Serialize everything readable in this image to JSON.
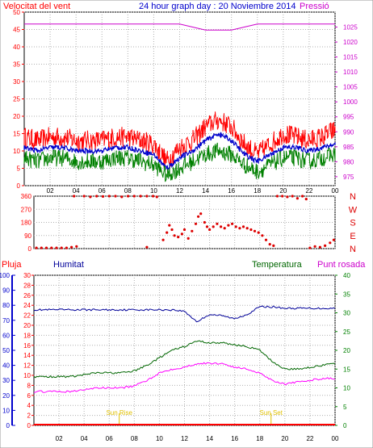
{
  "header": {
    "left_label": "Velocitat del vent",
    "title": "24 hour graph day : 20 Noviembre 2014",
    "right_label": "Pressió"
  },
  "colors": {
    "wind": "#ff0000",
    "gust_avg": "#0000cc",
    "wind_avg": "#008000",
    "pressure": "#cc00cc",
    "direction": "#dd0000",
    "rain": "#ff0000",
    "humidity": "#000099",
    "temperature": "#006600",
    "dew_point": "#ff00ff",
    "sun": "#e0c000"
  },
  "x_axis": {
    "ticks": [
      "02",
      "04",
      "06",
      "08",
      "10",
      "12",
      "14",
      "16",
      "18",
      "20",
      "22",
      "00"
    ]
  },
  "chart_data": [
    {
      "type": "line",
      "id": "wind_pressure",
      "ylim": [
        0,
        50
      ],
      "yticks": [
        "0",
        "5",
        "10",
        "15",
        "20",
        "25",
        "30",
        "35",
        "40",
        "45",
        "50"
      ],
      "y2lim": [
        972,
        1030
      ],
      "y2ticks": [
        "975",
        "980",
        "985",
        "990",
        "995",
        "1000",
        "1005",
        "1010",
        "1015",
        "1020",
        "1025"
      ],
      "x_hours": [
        0,
        1,
        2,
        3,
        4,
        5,
        6,
        7,
        8,
        9,
        10,
        11,
        12,
        13,
        14,
        15,
        16,
        17,
        18,
        19,
        20,
        21,
        22,
        23,
        24
      ],
      "series": [
        {
          "name": "Velocitat del vent",
          "values": [
            14,
            13,
            14,
            14,
            13,
            13,
            13,
            14,
            14,
            13,
            12,
            7,
            11,
            13,
            17,
            19,
            17,
            12,
            9,
            12,
            15,
            14,
            13,
            14,
            16
          ]
        },
        {
          "values": [
            11,
            10,
            11,
            11,
            10,
            10,
            10,
            11,
            11,
            10,
            9,
            5,
            8,
            10,
            13,
            15,
            13,
            9,
            7,
            9,
            11,
            11,
            10,
            11,
            12
          ]
        },
        {
          "values": [
            8,
            7,
            8,
            8,
            7,
            7,
            7,
            8,
            8,
            7,
            6,
            3,
            5,
            7,
            9,
            10,
            9,
            6,
            4,
            6,
            8,
            8,
            7,
            8,
            9
          ]
        },
        {
          "name": "Pressió",
          "axis": "right",
          "values": [
            1026,
            1026,
            1026,
            1026,
            1026,
            1026,
            1026,
            1026,
            1026,
            1026,
            1026,
            1026,
            1026,
            1025,
            1024,
            1024,
            1024,
            1025,
            1026,
            1026,
            1026,
            1026,
            1026,
            1026,
            1026
          ]
        }
      ]
    },
    {
      "type": "scatter",
      "id": "wind_direction",
      "yticks": [
        "0",
        "90",
        "180",
        "270",
        "360"
      ],
      "ylim": [
        0,
        360
      ],
      "compass_labels": [
        "N",
        "W",
        "S",
        "E",
        "N"
      ],
      "points": [
        [
          0.2,
          5
        ],
        [
          0.6,
          5
        ],
        [
          1.0,
          5
        ],
        [
          1.4,
          5
        ],
        [
          1.8,
          5
        ],
        [
          2.2,
          5
        ],
        [
          2.6,
          5
        ],
        [
          3.0,
          10
        ],
        [
          3.4,
          15
        ],
        [
          3.2,
          360
        ],
        [
          4.0,
          360
        ],
        [
          4.5,
          355
        ],
        [
          5.0,
          360
        ],
        [
          5.5,
          358
        ],
        [
          6.0,
          360
        ],
        [
          6.5,
          360
        ],
        [
          7.0,
          355
        ],
        [
          7.5,
          360
        ],
        [
          8.0,
          360
        ],
        [
          8.5,
          360
        ],
        [
          9.0,
          360
        ],
        [
          9.5,
          360
        ],
        [
          9.8,
          355
        ],
        [
          9.0,
          10
        ],
        [
          10.3,
          60
        ],
        [
          10.6,
          110
        ],
        [
          10.8,
          160
        ],
        [
          11.0,
          130
        ],
        [
          11.2,
          90
        ],
        [
          11.5,
          80
        ],
        [
          11.8,
          100
        ],
        [
          12.0,
          130
        ],
        [
          12.3,
          70
        ],
        [
          12.6,
          120
        ],
        [
          12.9,
          170
        ],
        [
          13.1,
          220
        ],
        [
          13.3,
          240
        ],
        [
          13.6,
          180
        ],
        [
          13.8,
          150
        ],
        [
          14.0,
          130
        ],
        [
          14.3,
          150
        ],
        [
          14.6,
          170
        ],
        [
          14.9,
          150
        ],
        [
          15.2,
          140
        ],
        [
          15.5,
          160
        ],
        [
          15.8,
          170
        ],
        [
          16.1,
          150
        ],
        [
          16.4,
          140
        ],
        [
          16.7,
          150
        ],
        [
          17.0,
          140
        ],
        [
          17.3,
          130
        ],
        [
          17.6,
          120
        ],
        [
          17.9,
          110
        ],
        [
          18.2,
          90
        ],
        [
          18.5,
          60
        ],
        [
          18.8,
          30
        ],
        [
          19.1,
          20
        ],
        [
          19.4,
          360
        ],
        [
          19.8,
          360
        ],
        [
          20.2,
          355
        ],
        [
          20.6,
          360
        ],
        [
          21.0,
          345
        ],
        [
          21.4,
          360
        ],
        [
          21.7,
          340
        ],
        [
          22.0,
          5
        ],
        [
          22.4,
          15
        ],
        [
          22.8,
          10
        ],
        [
          23.2,
          20
        ],
        [
          23.6,
          40
        ],
        [
          23.9,
          60
        ]
      ]
    },
    {
      "type": "line",
      "id": "rain_humidity_temp",
      "legend": [
        "Pluja",
        "Humitat",
        "Temperatura",
        "Punt rosada"
      ],
      "rain_ticks": [
        "0",
        "2",
        "4",
        "6",
        "8",
        "10",
        "12",
        "14",
        "16",
        "18",
        "20",
        "22",
        "24",
        "26",
        "28",
        "30"
      ],
      "humidity_ticks": [
        "0",
        "10",
        "20",
        "30",
        "40",
        "50",
        "60",
        "70",
        "80",
        "90",
        "100"
      ],
      "temp_ticks": [
        "0",
        "5",
        "10",
        "15",
        "20",
        "25",
        "30",
        "35",
        "40"
      ],
      "sun_labels": {
        "rise": "Sun Rise",
        "set": "Sun Set"
      },
      "sun_hours": {
        "rise": 6.8,
        "set": 18.9
      },
      "x_hours": [
        0,
        1,
        2,
        3,
        4,
        5,
        6,
        7,
        8,
        9,
        10,
        11,
        12,
        13,
        14,
        15,
        16,
        17,
        18,
        19,
        20,
        21,
        22,
        23,
        24
      ],
      "series": [
        {
          "name": "Humitat",
          "values": [
            77,
            77,
            77,
            77,
            77,
            77,
            77,
            77,
            77,
            77,
            77,
            77,
            76,
            69,
            74,
            73,
            71,
            74,
            79,
            79,
            78,
            78,
            78,
            78,
            78
          ]
        },
        {
          "name": "Temperatura",
          "values": [
            13,
            13,
            13,
            13,
            13.5,
            14,
            14,
            14,
            14.5,
            16,
            18,
            20,
            21,
            22.5,
            22,
            22,
            21.5,
            21,
            20,
            17,
            15,
            15,
            15.5,
            16,
            16.5
          ]
        },
        {
          "name": "Punt rosada",
          "values": [
            9,
            9,
            9,
            9,
            9.5,
            10,
            10,
            10,
            10.5,
            12,
            14,
            15,
            15.5,
            16.5,
            16.5,
            16.5,
            15.5,
            15,
            14,
            12,
            11,
            11.5,
            12,
            12.5,
            12.5
          ]
        },
        {
          "name": "Pluja",
          "values": [
            0,
            0,
            0,
            0,
            0,
            0,
            0,
            0,
            0,
            0,
            0,
            0,
            0,
            0,
            0,
            0,
            0,
            0,
            0,
            0,
            0,
            0,
            0,
            0,
            0
          ]
        }
      ]
    }
  ]
}
